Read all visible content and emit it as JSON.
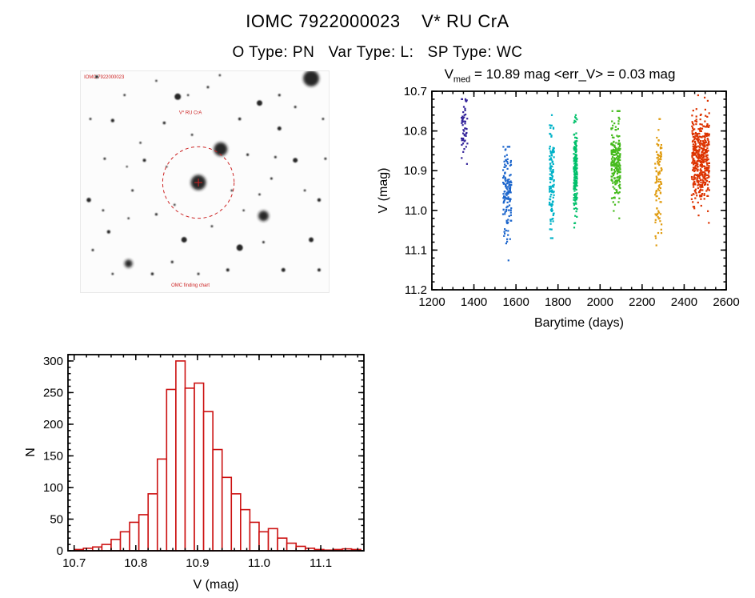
{
  "title": "IOMC 7922000023    V* RU CrA",
  "subtitle": "O Type: PN   Var Type: L:   SP Type: WC",
  "finder_chart": {
    "annotations": {
      "top_left": "IOMC 7922000023",
      "star_label": "V* RU CrA",
      "bottom": "OMC finding chart"
    },
    "circle_color": "#cc2222",
    "stars": [
      [
        290,
        9,
        10
      ],
      [
        122,
        32,
        4
      ],
      [
        225,
        40,
        3.5
      ],
      [
        176,
        98,
        8.5
      ],
      [
        148,
        140,
        9.5
      ],
      [
        230,
        182,
        6.5
      ],
      [
        60,
        242,
        5
      ],
      [
        130,
        212,
        3.5
      ],
      [
        200,
        222,
        4
      ],
      [
        20,
        7,
        2
      ],
      [
        40,
        62,
        2.2
      ],
      [
        80,
        112,
        2
      ],
      [
        10,
        162,
        2.8
      ],
      [
        35,
        202,
        2.2
      ],
      [
        270,
        112,
        3
      ],
      [
        300,
        162,
        2.2
      ],
      [
        250,
        72,
        2.5
      ],
      [
        290,
        212,
        3
      ],
      [
        105,
        65,
        1.8
      ],
      [
        160,
        20,
        1.5
      ],
      [
        200,
        60,
        1.8
      ],
      [
        65,
        150,
        1.5
      ],
      [
        95,
        180,
        1.6
      ],
      [
        240,
        135,
        1.5
      ],
      [
        185,
        250,
        2
      ],
      [
        255,
        250,
        2.5
      ],
      [
        90,
        255,
        1.8
      ],
      [
        30,
        110,
        1.5
      ],
      [
        140,
        80,
        1.4
      ],
      [
        210,
        105,
        1.6
      ],
      [
        55,
        30,
        1.4
      ],
      [
        250,
        30,
        1.6
      ],
      [
        305,
        60,
        1.4
      ],
      [
        15,
        225,
        1.5
      ],
      [
        115,
        240,
        1.6
      ],
      [
        165,
        195,
        1.4
      ],
      [
        75,
        90,
        1.3
      ],
      [
        225,
        155,
        1.4
      ],
      [
        300,
        250,
        2
      ],
      [
        135,
        30,
        1.3
      ],
      [
        190,
        150,
        1.3
      ],
      [
        28,
        175,
        1.4
      ],
      [
        270,
        45,
        1.5
      ],
      [
        108,
        120,
        1.2
      ],
      [
        58,
        120,
        1.2
      ],
      [
        148,
        255,
        1.5
      ],
      [
        230,
        215,
        1.5
      ],
      [
        308,
        110,
        1.5
      ],
      [
        175,
        5,
        1.3
      ],
      [
        245,
        108,
        1.5
      ],
      [
        60,
        185,
        1.3
      ],
      [
        12,
        60,
        1.4
      ],
      [
        95,
        12,
        1.3
      ],
      [
        282,
        150,
        1.4
      ],
      [
        205,
        175,
        1.3
      ],
      [
        118,
        168,
        1.3
      ],
      [
        40,
        255,
        1.4
      ]
    ]
  },
  "chart_data": [
    {
      "type": "scatter",
      "title": "V_med = 10.89 mag <err_V> = 0.03 mag",
      "title_parts": {
        "base": "V",
        "sub": "med",
        "rest": " = 10.89 mag <err_V> = 0.03 mag"
      },
      "v_med_mag": 10.89,
      "err_v_mag": 0.03,
      "xlabel": "Barytime (days)",
      "ylabel": "V (mag)",
      "xlim": [
        1200,
        2600
      ],
      "ylim": [
        10.7,
        11.2
      ],
      "y_axis_inverted": true,
      "xticks": [
        1200,
        1400,
        1600,
        1800,
        2000,
        2200,
        2400,
        2600
      ],
      "xtick_labels": [
        "1200",
        "1400",
        "1600",
        "1800",
        "2000",
        "2200",
        "2400",
        "2600"
      ],
      "yticks": [
        10.7,
        10.8,
        10.9,
        11.0,
        11.1,
        11.2
      ],
      "ytick_labels": [
        "10.7",
        "10.8",
        "10.9",
        "11.0",
        "11.1",
        "11.2"
      ],
      "xminor": 50,
      "yminor": 0.02,
      "grid": false,
      "clusters": [
        {
          "name": "epoch-1",
          "color": "#34249a",
          "x": 1355,
          "x_spread": 14,
          "n": 55,
          "v_mean": 10.79,
          "v_sigma": 0.045,
          "v_min": 10.72,
          "v_max": 10.97
        },
        {
          "name": "epoch-2",
          "color": "#1d66cc",
          "x": 1558,
          "x_spread": 20,
          "n": 140,
          "v_mean": 10.96,
          "v_sigma": 0.06,
          "v_min": 10.84,
          "v_max": 11.14
        },
        {
          "name": "epoch-3",
          "color": "#00b2c8",
          "x": 1770,
          "x_spread": 11,
          "n": 120,
          "v_mean": 10.92,
          "v_sigma": 0.06,
          "v_min": 10.76,
          "v_max": 11.07
        },
        {
          "name": "epoch-4",
          "color": "#00c06a",
          "x": 1883,
          "x_spread": 8,
          "n": 170,
          "v_mean": 10.9,
          "v_sigma": 0.055,
          "v_min": 10.76,
          "v_max": 11.06
        },
        {
          "name": "epoch-5",
          "color": "#46bb1e",
          "x": 2075,
          "x_spread": 22,
          "n": 220,
          "v_mean": 10.88,
          "v_sigma": 0.05,
          "v_min": 10.75,
          "v_max": 11.02
        },
        {
          "name": "epoch-6",
          "color": "#e09c10",
          "x": 2278,
          "x_spread": 16,
          "n": 100,
          "v_mean": 10.93,
          "v_sigma": 0.075,
          "v_min": 10.77,
          "v_max": 11.12
        },
        {
          "name": "epoch-7",
          "color": "#dd3300",
          "x": 2478,
          "x_spread": 42,
          "n": 430,
          "v_mean": 10.87,
          "v_sigma": 0.055,
          "v_min": 10.71,
          "v_max": 11.1
        }
      ]
    },
    {
      "type": "bar",
      "title": "",
      "xlabel": "V (mag)",
      "ylabel": "N",
      "xlim": [
        10.69,
        11.17
      ],
      "ylim": [
        0,
        310
      ],
      "bar_color": "#cc1111",
      "bin_start": 10.7,
      "bin_width": 0.015,
      "counts": [
        2,
        4,
        6,
        10,
        18,
        30,
        45,
        57,
        90,
        145,
        255,
        300,
        257,
        265,
        220,
        160,
        116,
        90,
        65,
        45,
        30,
        35,
        20,
        12,
        7,
        4,
        2,
        1,
        2,
        3,
        2
      ],
      "xticks": [
        10.7,
        10.8,
        10.9,
        11.0,
        11.1
      ],
      "xtick_labels": [
        "10.7",
        "10.8",
        "10.9",
        "11.0",
        "11.1"
      ],
      "yticks": [
        0,
        50,
        100,
        150,
        200,
        250,
        300
      ],
      "ytick_labels": [
        "0",
        "50",
        "100",
        "150",
        "200",
        "250",
        "300"
      ],
      "xminor": 0.02,
      "yminor": 10,
      "grid": false
    }
  ]
}
